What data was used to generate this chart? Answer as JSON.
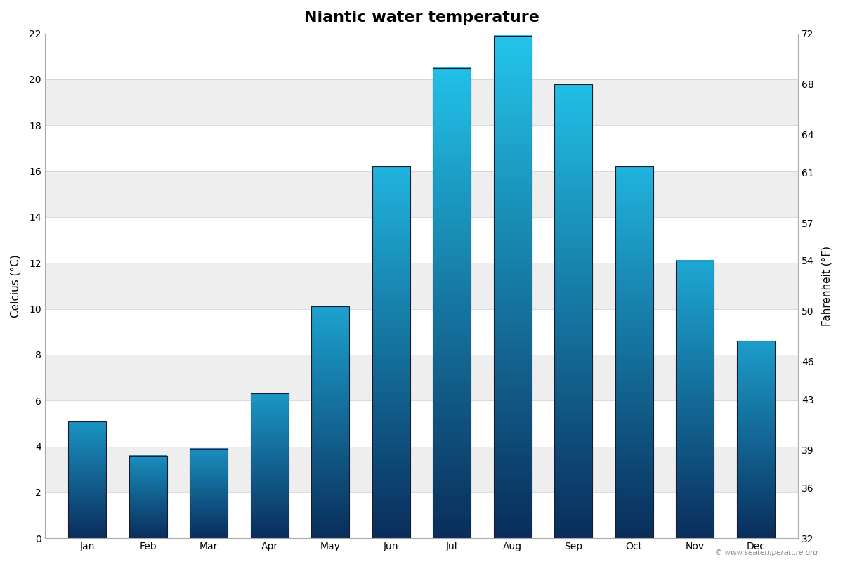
{
  "title": "Niantic water temperature",
  "months": [
    "Jan",
    "Feb",
    "Mar",
    "Apr",
    "May",
    "Jun",
    "Jul",
    "Aug",
    "Sep",
    "Oct",
    "Nov",
    "Dec"
  ],
  "celsius_values": [
    5.1,
    3.6,
    3.9,
    6.3,
    10.1,
    16.2,
    20.5,
    21.9,
    19.8,
    16.2,
    12.1,
    8.6
  ],
  "ylabel_left": "Celcius (°C)",
  "ylabel_right": "Fahrenheit (°F)",
  "ylim_celsius": [
    0,
    22
  ],
  "yticks_celsius": [
    0,
    2,
    4,
    6,
    8,
    10,
    12,
    14,
    16,
    18,
    20,
    22
  ],
  "yticks_fahrenheit": [
    32,
    36,
    39,
    43,
    46,
    50,
    54,
    57,
    61,
    64,
    68,
    72
  ],
  "bar_bottom_color": "#0a2e5c",
  "bar_top_cold_color": "#1a8fc0",
  "bar_top_warm_color": "#23c5eb",
  "stripe_colors": [
    "#ffffff",
    "#eeeeee"
  ],
  "background_color": "#ffffff",
  "copyright_text": "© www.seatemperature.org",
  "title_fontsize": 16,
  "axis_label_fontsize": 11,
  "tick_fontsize": 10,
  "bar_width": 0.62
}
